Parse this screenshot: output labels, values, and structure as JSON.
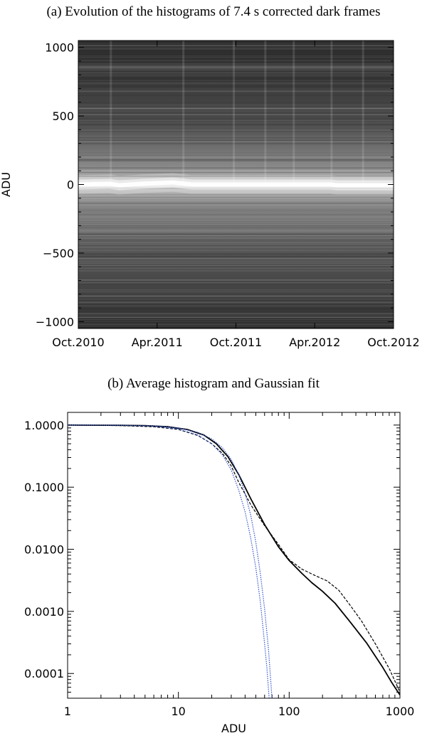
{
  "chart_data": [
    {
      "type": "heatmap",
      "title": "(a) Evolution of the histograms of 7.4 s corrected dark frames",
      "xlabel": "",
      "ylabel": "ADU",
      "xlim": [
        "Oct.2010",
        "Oct.2012"
      ],
      "ylim": [
        -1050,
        1050
      ],
      "x_tick_labels": [
        "Oct.2010",
        "Apr.2011",
        "Oct.2011",
        "Apr.2012",
        "Oct.2012"
      ],
      "y_ticks": [
        1000,
        500,
        0,
        -500,
        -1000
      ],
      "y_tick_labels": [
        "1000",
        "500",
        "0",
        "−500",
        "−1000"
      ],
      "colormap": "grayscale",
      "band_center_adu": {
        "x_fraction": [
          0.0,
          0.1,
          0.13,
          0.2,
          0.3,
          0.36,
          0.45,
          0.6,
          0.8,
          0.82,
          1.0
        ],
        "y": [
          0,
          5,
          -5,
          5,
          15,
          0,
          0,
          0,
          0,
          -5,
          -5
        ]
      }
    },
    {
      "type": "line",
      "title": "(b) Average histogram and Gaussian fit",
      "xlabel": "ADU",
      "ylabel": "",
      "xscale": "log",
      "yscale": "log",
      "xlim": [
        1,
        1000
      ],
      "ylim": [
        4e-05,
        1.6
      ],
      "x_ticks": [
        1,
        10,
        100,
        1000
      ],
      "x_tick_labels": [
        "1",
        "10",
        "100",
        "1000"
      ],
      "y_ticks": [
        1,
        0.1,
        0.01,
        0.001,
        0.0001
      ],
      "y_tick_labels": [
        "1.0000",
        "0.1000",
        "0.0100",
        "0.0010",
        "0.0001"
      ],
      "series": [
        {
          "style": "solid",
          "color": "#000000",
          "x": [
            1,
            3,
            5,
            8,
            12,
            17,
            22,
            28,
            35,
            45,
            60,
            80,
            100,
            130,
            160,
            200,
            260,
            350,
            500,
            700,
            850,
            1000
          ],
          "y": [
            1.0,
            0.99,
            0.98,
            0.94,
            0.85,
            0.69,
            0.5,
            0.31,
            0.16,
            0.065,
            0.025,
            0.011,
            0.0066,
            0.0041,
            0.0029,
            0.0021,
            0.00135,
            0.0007,
            0.00031,
            0.000125,
            7e-05,
            4.5e-05
          ]
        },
        {
          "style": "dashed",
          "color": "#000000",
          "x": [
            1,
            3,
            6,
            10,
            15,
            20,
            25,
            30,
            35,
            45,
            60,
            80,
            100,
            130,
            170,
            220,
            280,
            350,
            450,
            600,
            800,
            1000
          ],
          "y": [
            1.0,
            0.98,
            0.94,
            0.85,
            0.68,
            0.5,
            0.35,
            0.22,
            0.12,
            0.052,
            0.024,
            0.012,
            0.0068,
            0.0048,
            0.0038,
            0.0031,
            0.0022,
            0.0013,
            0.0007,
            0.0003,
            0.00012,
            5e-05
          ]
        },
        {
          "style": "dotted",
          "color": "#3355cc",
          "x": [
            1,
            3,
            6,
            10,
            15,
            20,
            25,
            30,
            35,
            40,
            45,
            50,
            55,
            60,
            63,
            66
          ],
          "y": [
            1.0,
            0.99,
            0.96,
            0.86,
            0.69,
            0.5,
            0.33,
            0.19,
            0.09,
            0.04,
            0.015,
            0.005,
            0.0014,
            0.0003,
            0.00012,
            4e-05
          ]
        },
        {
          "style": "dotted",
          "color": "#3355cc",
          "x": [
            1,
            3,
            6,
            10,
            15,
            20,
            25,
            30,
            35,
            40,
            45,
            50,
            55,
            60,
            65,
            70
          ],
          "y": [
            1.0,
            0.995,
            0.97,
            0.9,
            0.76,
            0.6,
            0.43,
            0.28,
            0.16,
            0.08,
            0.035,
            0.013,
            0.004,
            0.0011,
            0.00025,
            4e-05
          ]
        }
      ]
    }
  ]
}
